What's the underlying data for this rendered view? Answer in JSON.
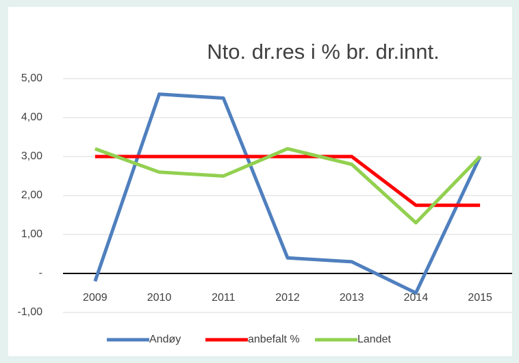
{
  "chart_data": {
    "type": "line",
    "title": "Nto. dr.res i % br. dr.innt.",
    "categories": [
      "2009",
      "2010",
      "2011",
      "2012",
      "2013",
      "2014",
      "2015"
    ],
    "series": [
      {
        "name": "Andøy",
        "color": "#4f7fbe",
        "values": [
          -0.2,
          4.6,
          4.5,
          0.4,
          0.3,
          -0.5,
          3.0
        ]
      },
      {
        "name": "anbefalt %",
        "color": "#ff0000",
        "values": [
          3.0,
          3.0,
          3.0,
          3.0,
          3.0,
          1.75,
          1.75
        ]
      },
      {
        "name": "Landet",
        "color": "#92d050",
        "values": [
          3.2,
          2.6,
          2.5,
          3.2,
          2.8,
          1.3,
          3.0
        ]
      }
    ],
    "ylim": [
      -1,
      5
    ],
    "yticks": [
      {
        "value": -1,
        "label": "-1,00"
      },
      {
        "value": 0,
        "label": "-"
      },
      {
        "value": 1,
        "label": "1,00"
      },
      {
        "value": 2,
        "label": "2,00"
      },
      {
        "value": 3,
        "label": "3,00"
      },
      {
        "value": 4,
        "label": "4,00"
      },
      {
        "value": 5,
        "label": "5,00"
      }
    ],
    "grid": true,
    "legend": "bottom"
  }
}
